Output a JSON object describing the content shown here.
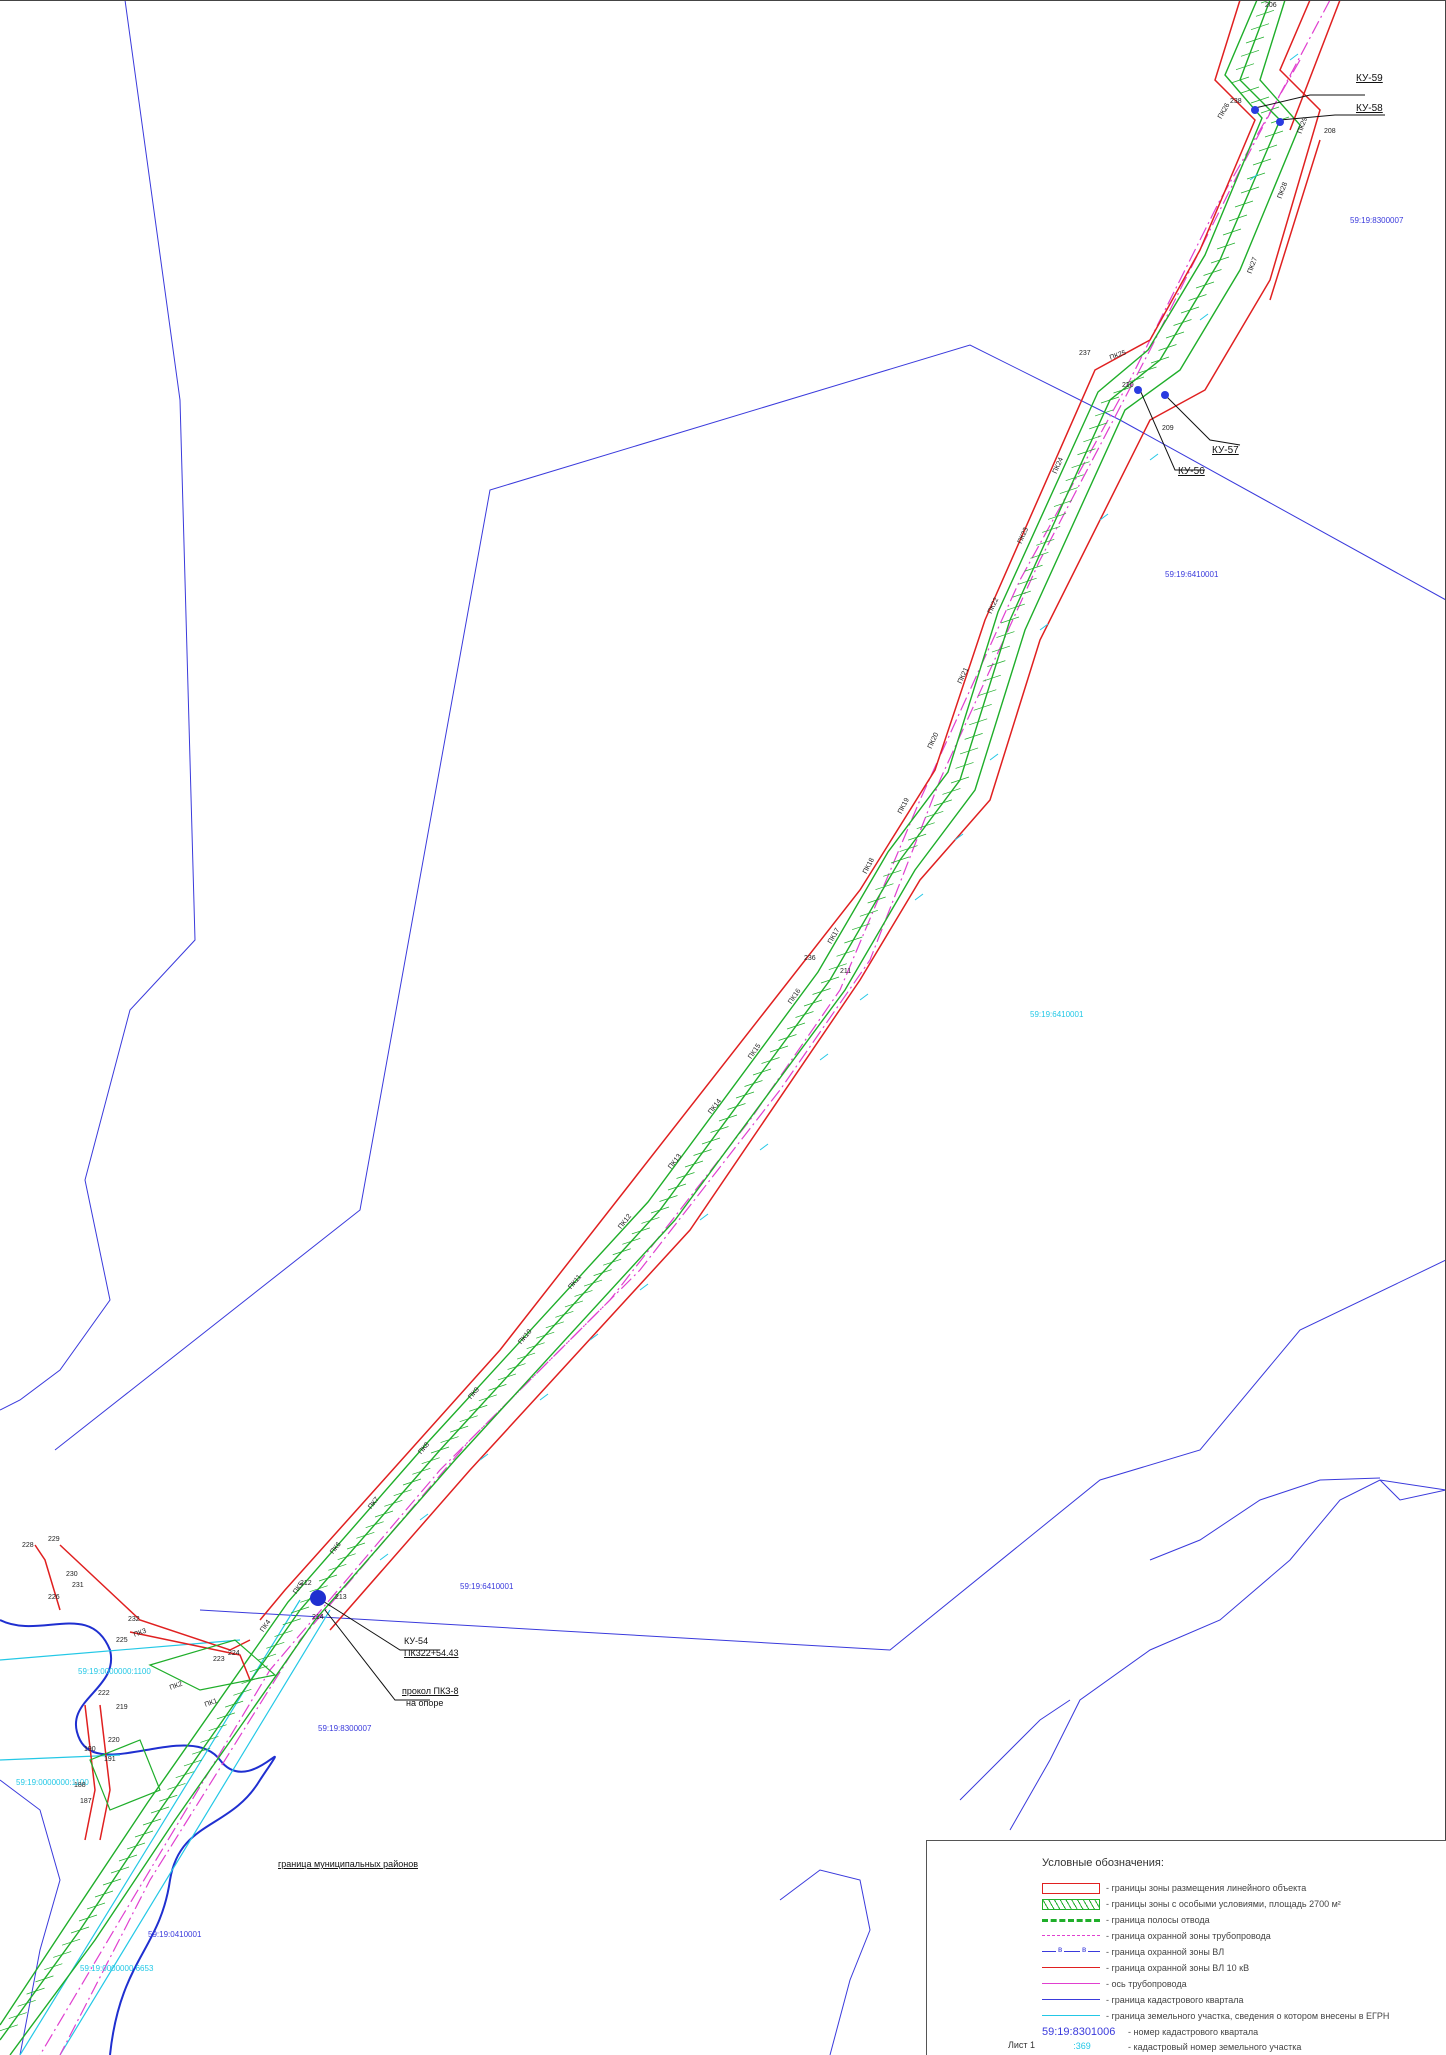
{
  "map": {
    "colors": {
      "boundary": "#3a3adc",
      "red": "#e02020",
      "green": "#1fae2a",
      "magenta": "#e040d0",
      "cyan": "#23c8e6",
      "river": "#1f2fd0"
    },
    "cadastral_labels": [
      "59:19:8300007",
      "59:19:6410001",
      "59:19:6410001",
      "59:19:6410001",
      "59:19:8300007",
      "59:19:8300007",
      "59:19:0000000:1100",
      "59:19:0000000:1100",
      "59:19:0410001",
      "59:19:0000000:6653"
    ],
    "stations": [
      "ПК3",
      "ПК2",
      "ПК1",
      "ПК4",
      "ПК5",
      "ПК6",
      "ПК7",
      "ПК8",
      "ПК9",
      "ПК10",
      "ПК11",
      "ПК12",
      "ПК13",
      "ПК14",
      "ПК15",
      "ПК16",
      "ПК17",
      "ПК18",
      "ПК19",
      "ПК20",
      "ПК21",
      "ПК22",
      "ПК23",
      "ПК24",
      "ПК25",
      "ПК26",
      "ПК27",
      "ПК28",
      "ПК29"
    ],
    "point_numbers": [
      "228",
      "229",
      "230",
      "231",
      "226",
      "232",
      "225",
      "224",
      "223",
      "222",
      "219",
      "220",
      "190",
      "191",
      "188",
      "187",
      "206",
      "208",
      "237",
      "236",
      "209",
      "238",
      "212",
      "213",
      "214",
      "211",
      "210"
    ],
    "callouts": {
      "ku59": "КУ-59",
      "ku58": "КУ-58",
      "ku57": "КУ-57",
      "ku56": "КУ-56",
      "ku54": "КУ-54",
      "ku54_pk": "ПК322+54.43",
      "crossing": "прокол ПКЗ-8",
      "crossing_note": "на опоре"
    },
    "district_boundary": "граница муниципальных районов"
  },
  "legend": {
    "title": "Условные обозначения:",
    "items": [
      "- границы зоны размещения линейного объекта",
      "- границы зоны с особыми условиями, площадь 2700 м²",
      "- граница полосы отвода",
      "- граница охранной зоны трубопровода",
      "- граница охранной зоны ВЛ",
      "- граница охранной зоны ВЛ 10 кВ",
      "- ось трубопровода",
      "- граница кадастрового квартала",
      "- граница земельного участка, сведения о котором внесены в ЕГРН",
      "- номер кадастрового квартала",
      "- кадастровый номер земельного участка"
    ],
    "quarter_sample": "59:19:8301006",
    "parcel_sample": ":369",
    "sheet": "Лист 1"
  }
}
